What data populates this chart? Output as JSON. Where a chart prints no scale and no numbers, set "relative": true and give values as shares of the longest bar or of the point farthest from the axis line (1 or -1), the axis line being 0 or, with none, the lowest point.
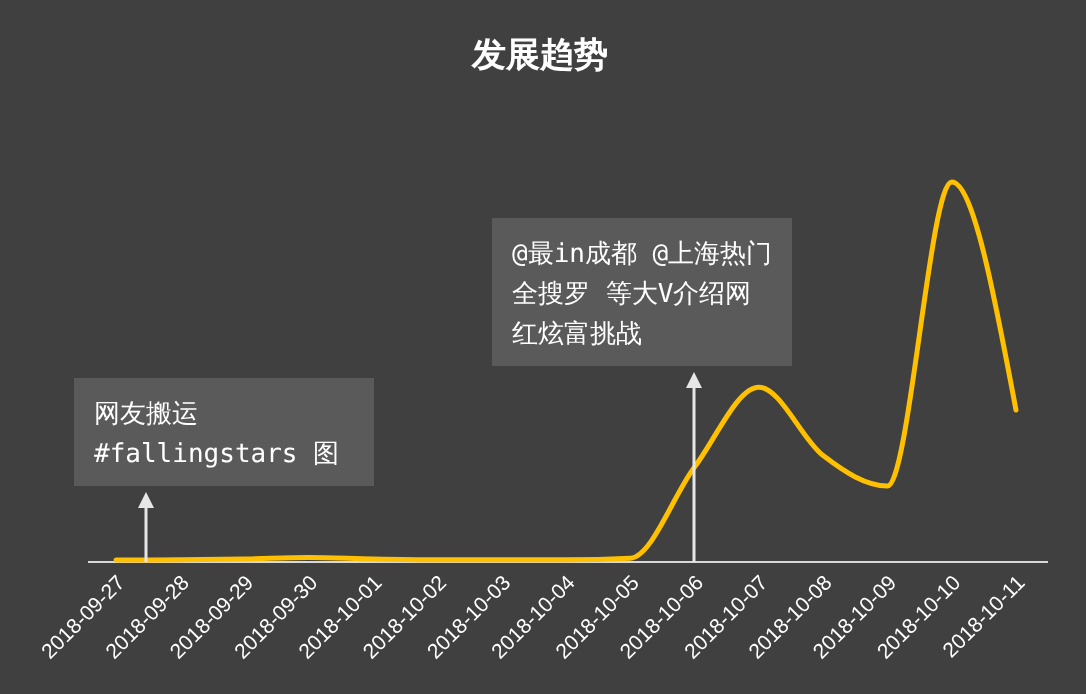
{
  "chart_data": {
    "type": "line",
    "title": "发展趋势",
    "relative": true,
    "tick_labels": "x",
    "line_style": "solid",
    "categories": [
      "2018-09-27",
      "2018-09-28",
      "2018-09-29",
      "2018-09-30",
      "2018-10-01",
      "2018-10-02",
      "2018-10-03",
      "2018-10-04",
      "2018-10-05",
      "2018-10-06",
      "2018-10-07",
      "2018-10-08",
      "2018-10-09",
      "2018-10-10",
      "2018-10-11"
    ],
    "series": [
      {
        "color": "#ffc000",
        "values": [
          0.005,
          0.006,
          0.008,
          0.012,
          0.008,
          0.006,
          0.006,
          0.006,
          0.01,
          0.25,
          0.46,
          0.28,
          0.2,
          1,
          0.4
        ]
      }
    ],
    "annotations": [
      "网友搬运 #fallingstars 图",
      "@最in成都 @上海热门全搜罗 等大V介绍网红炫富挑战"
    ]
  }
}
